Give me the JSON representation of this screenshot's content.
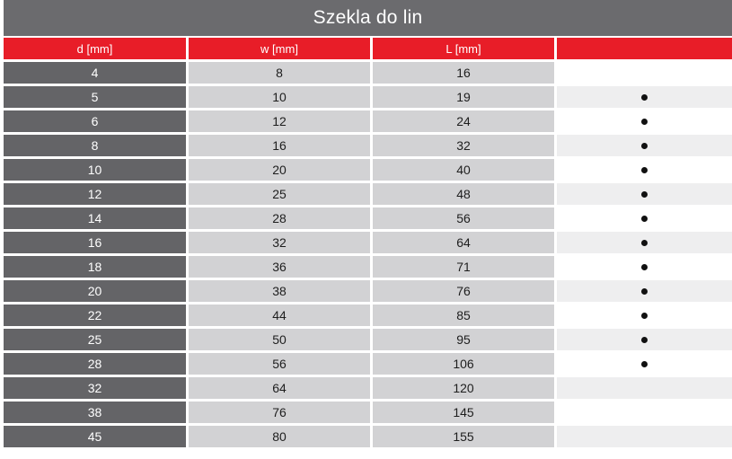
{
  "title": {
    "text": "Szekla do lin"
  },
  "colors": {
    "title_bar": "#6b6b6e",
    "header_red": "#e81d28",
    "col_d_gray": "#646467",
    "col_value_gray": "#d2d2d4",
    "marker_alt_gray": "#eeeeef",
    "marker_white": "#ffffff",
    "dot_black": "#111111"
  },
  "chart_data": {
    "type": "table",
    "title": "Szekla do lin",
    "columns": [
      "d [mm]",
      "w [mm]",
      "L [mm]",
      ""
    ],
    "rows": [
      {
        "d": "4",
        "w": "8",
        "L": "16",
        "marked": false
      },
      {
        "d": "5",
        "w": "10",
        "L": "19",
        "marked": true
      },
      {
        "d": "6",
        "w": "12",
        "L": "24",
        "marked": true
      },
      {
        "d": "8",
        "w": "16",
        "L": "32",
        "marked": true
      },
      {
        "d": "10",
        "w": "20",
        "L": "40",
        "marked": true
      },
      {
        "d": "12",
        "w": "25",
        "L": "48",
        "marked": true
      },
      {
        "d": "14",
        "w": "28",
        "L": "56",
        "marked": true
      },
      {
        "d": "16",
        "w": "32",
        "L": "64",
        "marked": true
      },
      {
        "d": "18",
        "w": "36",
        "L": "71",
        "marked": true
      },
      {
        "d": "20",
        "w": "38",
        "L": "76",
        "marked": true
      },
      {
        "d": "22",
        "w": "44",
        "L": "85",
        "marked": true
      },
      {
        "d": "25",
        "w": "50",
        "L": "95",
        "marked": true
      },
      {
        "d": "28",
        "w": "56",
        "L": "106",
        "marked": true
      },
      {
        "d": "32",
        "w": "64",
        "L": "120",
        "marked": false
      },
      {
        "d": "38",
        "w": "76",
        "L": "145",
        "marked": false
      },
      {
        "d": "45",
        "w": "80",
        "L": "155",
        "marked": false
      }
    ]
  }
}
